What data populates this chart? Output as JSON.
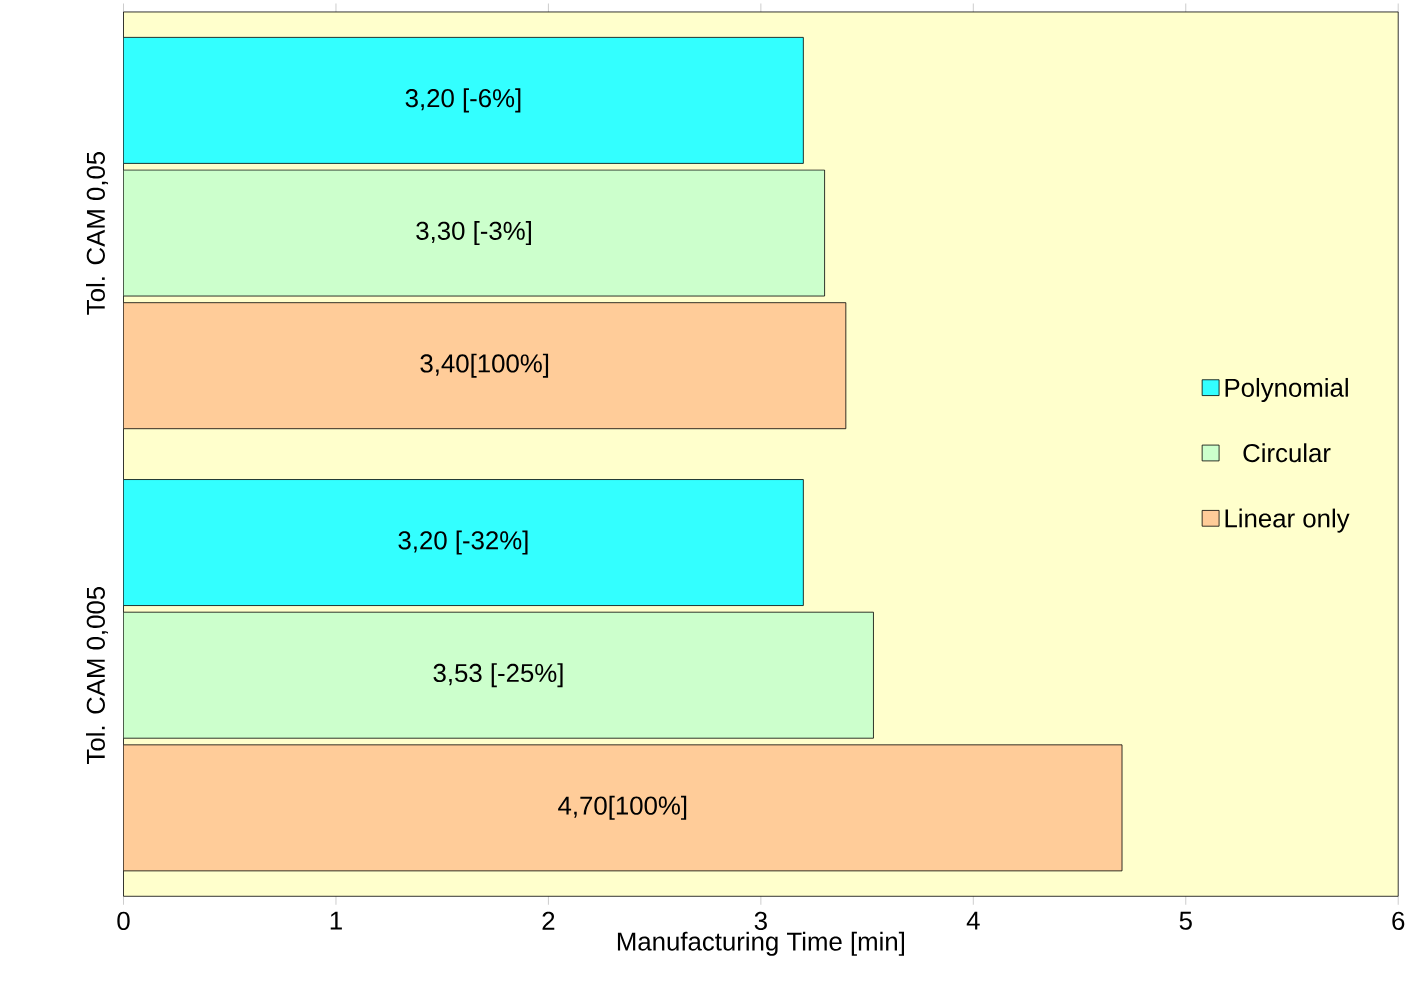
{
  "chart_data": {
    "type": "bar",
    "orientation": "horizontal",
    "xlabel": "Manufacturing Time [min]",
    "categories": [
      "Tol. CAM 0,05",
      "Tol. CAM 0,005"
    ],
    "series": [
      {
        "name": "Polynomial",
        "color": "#33ffff",
        "values": [
          3.2,
          3.2
        ],
        "value_labels": [
          "3,20 [-6%]",
          "3,20 [-32%]"
        ]
      },
      {
        "name": "Circular",
        "color": "#ccffcc",
        "values": [
          3.3,
          3.53
        ],
        "value_labels": [
          "3,30 [-3%]",
          "3,53 [-25%]"
        ]
      },
      {
        "name": "Linear only",
        "color": "#ffcc99",
        "values": [
          3.4,
          4.7
        ],
        "value_labels": [
          "3,40[100%]",
          "4,70[100%]"
        ]
      }
    ],
    "xlim": [
      0,
      6
    ],
    "xticks": [
      0,
      1,
      2,
      3,
      4,
      5,
      6
    ],
    "legend": "right"
  }
}
